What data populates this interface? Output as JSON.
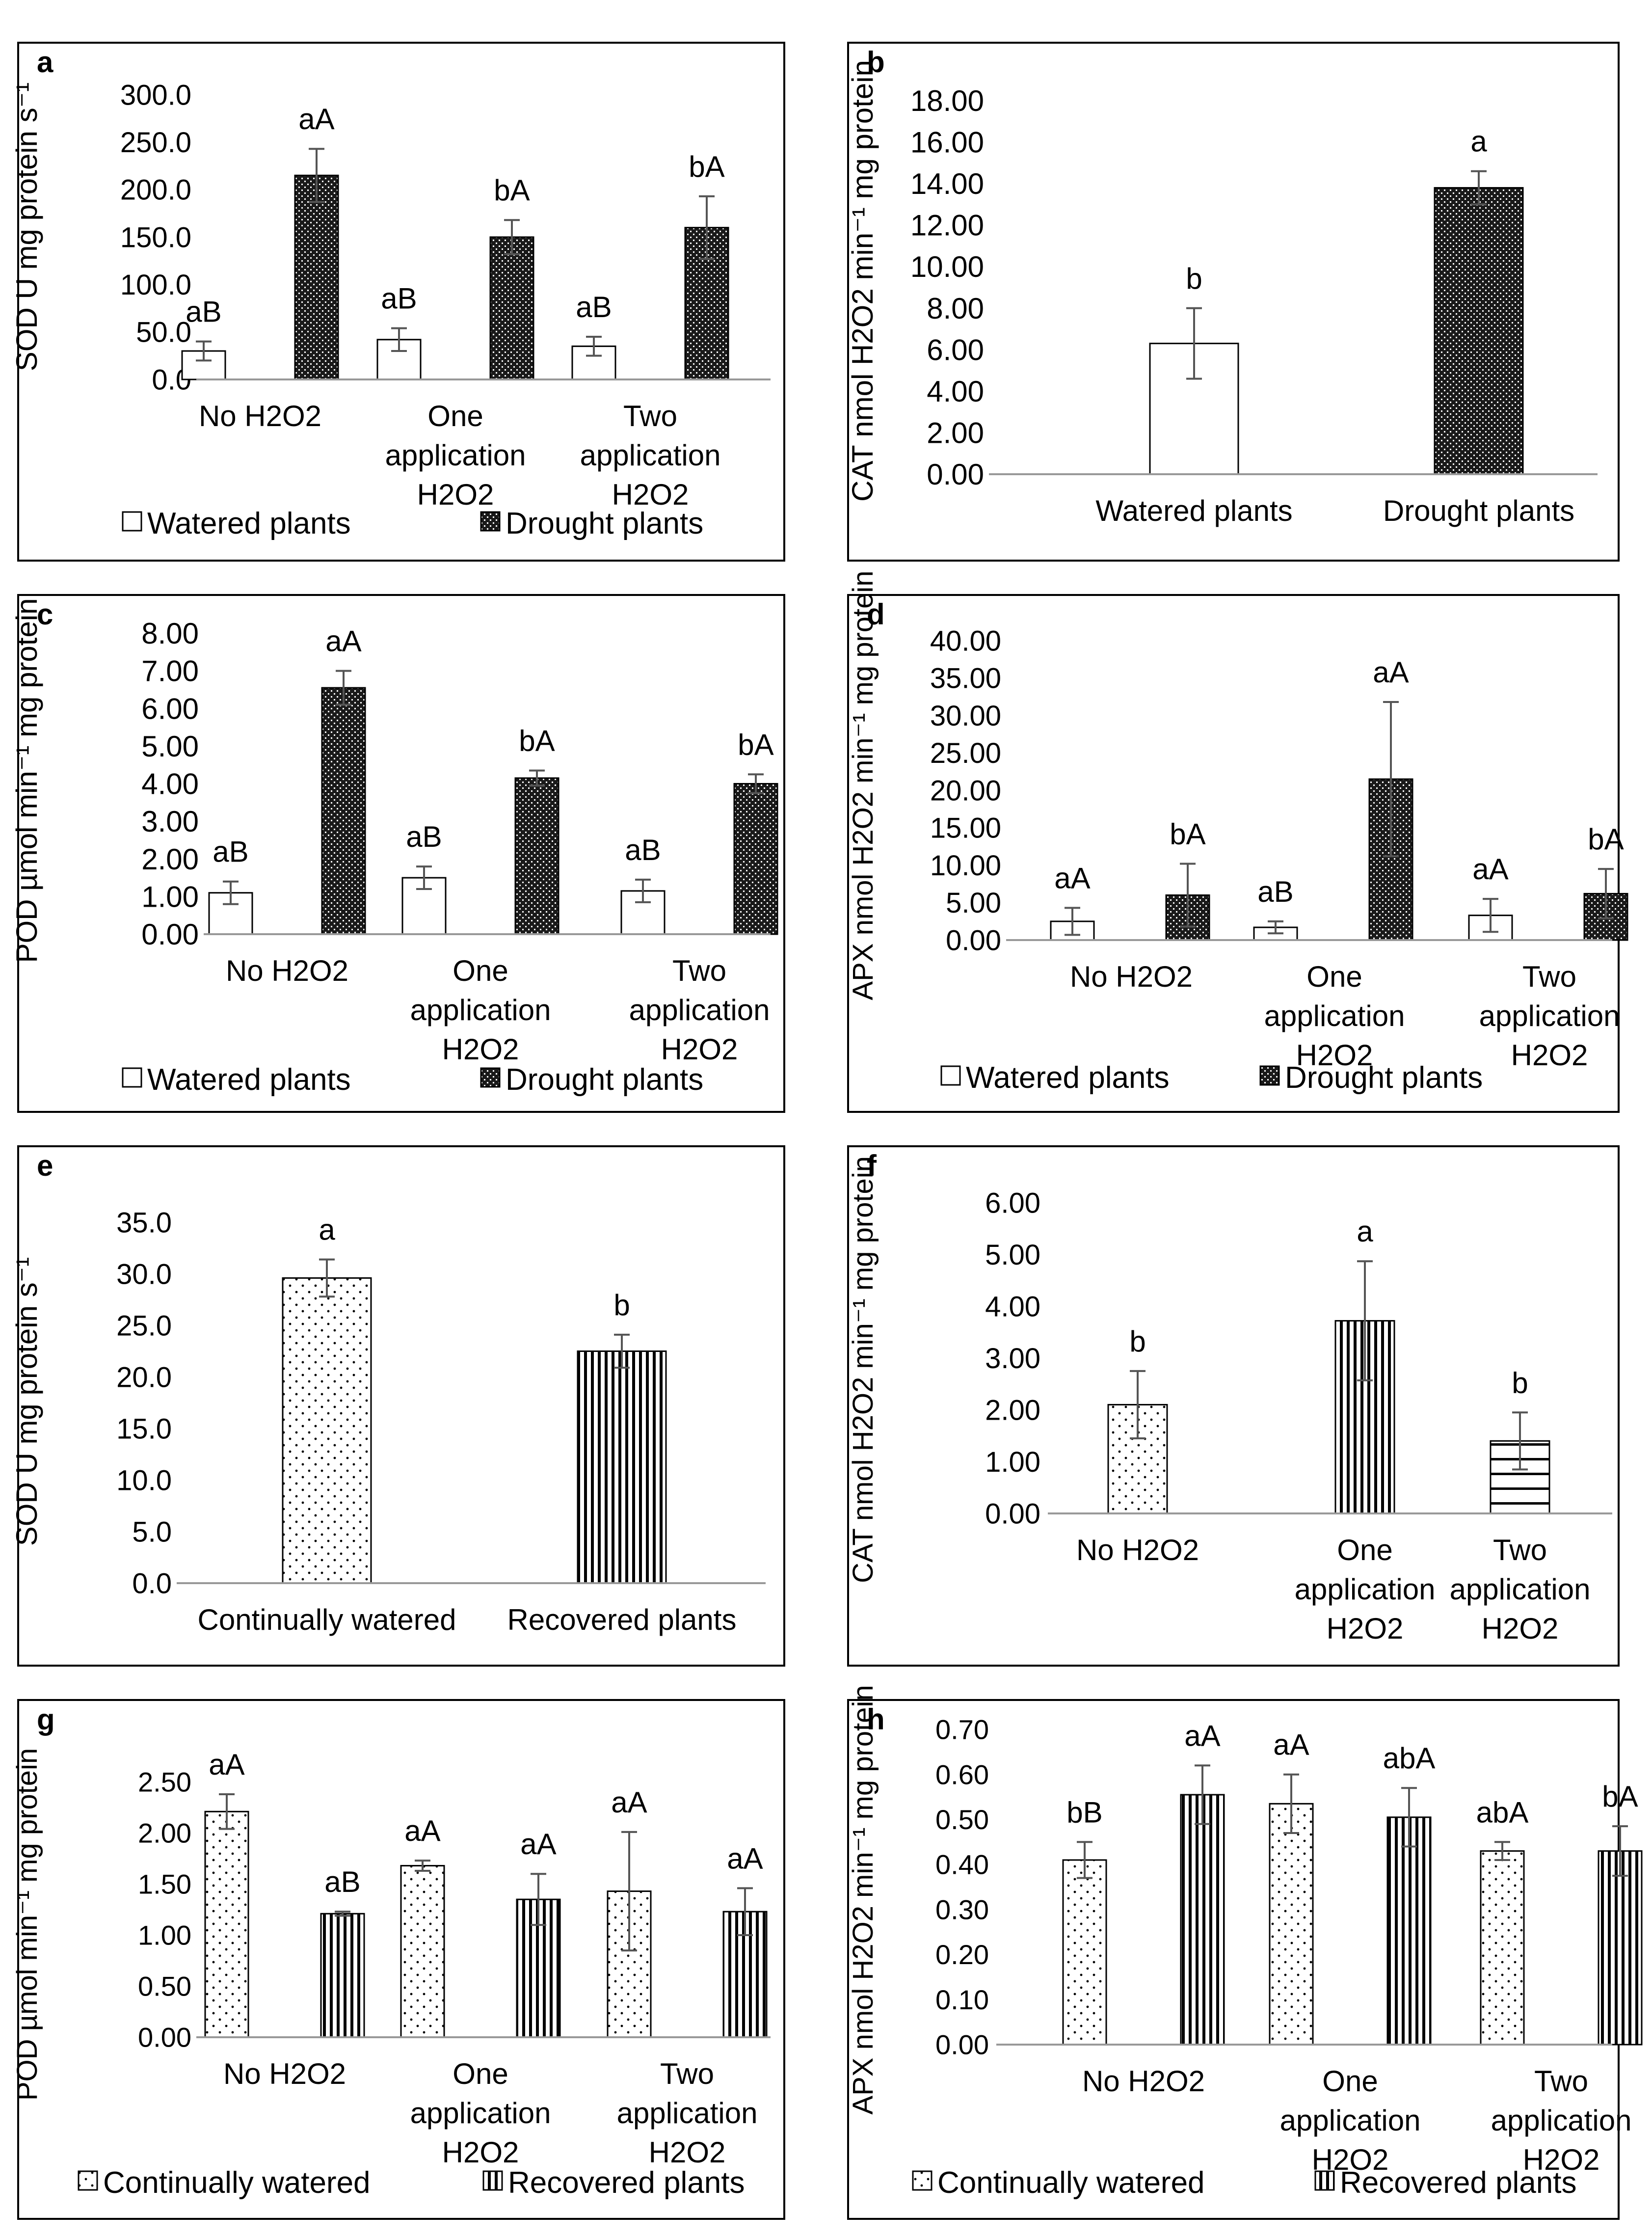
{
  "figure": {
    "legend_watered": "Watered plants",
    "legend_drought": "Drought plants",
    "legend_continual": "Continually watered",
    "legend_recovered": "Recovered plants"
  },
  "chart_data": [
    {
      "panel": "a",
      "type": "bar",
      "ylabel": "SOD U mg protein s^-1",
      "yticks": [
        "0.0",
        "50.0",
        "100.0",
        "150.0",
        "200.0",
        "250.0",
        "300.0"
      ],
      "ylim": [
        0,
        300
      ],
      "categories": [
        [
          "No H2O2"
        ],
        [
          "One",
          "application",
          "H2O2"
        ],
        [
          "Two",
          "application",
          "H2O2"
        ]
      ],
      "series": [
        {
          "name": "Watered plants",
          "pattern": "white",
          "values": [
            30,
            42,
            35
          ],
          "errors": [
            10,
            12,
            10
          ],
          "labels": [
            "aB",
            "aB",
            "aB"
          ]
        },
        {
          "name": "Drought plants",
          "pattern": "dense",
          "values": [
            215,
            150,
            160
          ],
          "errors": [
            28,
            18,
            33
          ],
          "labels": [
            "aA",
            "bA",
            "bA"
          ]
        }
      ],
      "legend": [
        "Watered plants",
        "Drought plants"
      ]
    },
    {
      "panel": "b",
      "type": "bar",
      "ylabel": "CAT nmol H2O2 min^-1 mg protein",
      "yticks": [
        "0.00",
        "2.00",
        "4.00",
        "6.00",
        "8.00",
        "10.00",
        "12.00",
        "14.00",
        "16.00",
        "18.00"
      ],
      "ylim": [
        0,
        18
      ],
      "categories": [
        [
          "Watered plants"
        ],
        [
          "Drought plants"
        ]
      ],
      "series": [
        {
          "name": "Watered plants",
          "pattern": [
            "white",
            "dense"
          ],
          "values": [
            6.3,
            13.8
          ],
          "errors": [
            1.7,
            0.8
          ],
          "labels": [
            "b",
            "a"
          ]
        }
      ],
      "legend": []
    },
    {
      "panel": "c",
      "type": "bar",
      "ylabel": "POD µmol min^-1 mg protein",
      "yticks": [
        "0.00",
        "1.00",
        "2.00",
        "3.00",
        "4.00",
        "5.00",
        "6.00",
        "7.00",
        "8.00"
      ],
      "ylim": [
        0,
        8
      ],
      "categories": [
        [
          "No H2O2"
        ],
        [
          "One",
          "application",
          "H2O2"
        ],
        [
          "Two",
          "application",
          "H2O2"
        ]
      ],
      "series": [
        {
          "name": "Watered plants",
          "pattern": "white",
          "values": [
            1.1,
            1.5,
            1.15
          ],
          "errors": [
            0.3,
            0.3,
            0.3
          ],
          "labels": [
            "aB",
            "aB",
            "aB"
          ]
        },
        {
          "name": "Drought plants",
          "pattern": "dense",
          "values": [
            6.55,
            4.15,
            4.0
          ],
          "errors": [
            0.45,
            0.2,
            0.25
          ],
          "labels": [
            "aA",
            "bA",
            "bA"
          ]
        }
      ],
      "legend": [
        "Watered plants",
        "Drought plants"
      ]
    },
    {
      "panel": "d",
      "type": "bar",
      "ylabel": "APX nmol H2O2 min^-1 mg protein",
      "yticks": [
        "0.00",
        "5.00",
        "10.00",
        "15.00",
        "20.00",
        "25.00",
        "30.00",
        "35.00",
        "40.00"
      ],
      "ylim": [
        0,
        40
      ],
      "categories": [
        [
          "No H2O2"
        ],
        [
          "One",
          "application",
          "H2O2"
        ],
        [
          "Two",
          "application",
          "H2O2"
        ]
      ],
      "series": [
        {
          "name": "Watered plants",
          "pattern": "white",
          "values": [
            2.5,
            1.7,
            3.3
          ],
          "errors": [
            1.8,
            0.8,
            2.2
          ],
          "labels": [
            "aA",
            "aB",
            "aA"
          ]
        },
        {
          "name": "Drought plants",
          "pattern": "dense",
          "values": [
            6.0,
            21.5,
            6.2
          ],
          "errors": [
            4.2,
            10.3,
            3.3
          ],
          "labels": [
            "bA",
            "aA",
            "bA"
          ]
        }
      ],
      "legend": [
        "Watered plants",
        "Drought plants"
      ]
    },
    {
      "panel": "e",
      "type": "bar",
      "ylabel": "SOD U mg protein s^-1",
      "yticks": [
        "0.0",
        "5.0",
        "10.0",
        "15.0",
        "20.0",
        "25.0",
        "30.0",
        "35.0"
      ],
      "ylim": [
        0,
        35
      ],
      "categories": [
        [
          "Continually watered"
        ],
        [
          "Recovered plants"
        ]
      ],
      "series": [
        {
          "name": "Continually watered",
          "pattern": [
            "dots",
            "vlines"
          ],
          "values": [
            29.6,
            22.5
          ],
          "errors": [
            1.8,
            1.6
          ],
          "labels": [
            "a",
            "b"
          ]
        }
      ],
      "legend": []
    },
    {
      "panel": "f",
      "type": "bar",
      "ylabel": "CAT nmol H2O2 min^-1 mg protein",
      "yticks": [
        "0.00",
        "1.00",
        "2.00",
        "3.00",
        "4.00",
        "5.00",
        "6.00"
      ],
      "ylim": [
        0,
        6
      ],
      "categories": [
        [
          "No H2O2"
        ],
        [
          "One",
          "application",
          "H2O2"
        ],
        [
          "Two",
          "application",
          "H2O2"
        ]
      ],
      "series": [
        {
          "name": "Continually watered",
          "pattern": [
            "dots",
            "vlines",
            "hlines"
          ],
          "values": [
            2.1,
            3.72,
            1.4
          ],
          "errors": [
            0.65,
            1.15,
            0.55
          ],
          "labels": [
            "b",
            "a",
            "b"
          ]
        }
      ],
      "legend": []
    },
    {
      "panel": "g",
      "type": "bar",
      "ylabel": "POD µmol min^-1 mg protein",
      "yticks": [
        "0.00",
        "0.50",
        "1.00",
        "1.50",
        "2.00",
        "2.50"
      ],
      "ylim": [
        0,
        2.5
      ],
      "categories": [
        [
          "No H2O2"
        ],
        [
          "One",
          "application",
          "H2O2"
        ],
        [
          "Two",
          "application",
          "H2O2"
        ]
      ],
      "series": [
        {
          "name": "Continually watered",
          "pattern": "dots",
          "values": [
            2.21,
            1.68,
            1.43
          ],
          "errors": [
            0.17,
            0.05,
            0.58
          ],
          "labels": [
            "aA",
            "aA",
            "aA"
          ]
        },
        {
          "name": "Recovered plants",
          "pattern": "vlines",
          "values": [
            1.21,
            1.35,
            1.23
          ],
          "errors": [
            0.02,
            0.25,
            0.23
          ],
          "labels": [
            "aB",
            "aA",
            "aA"
          ]
        }
      ],
      "legend": [
        "Continually watered",
        "Recovered plants"
      ]
    },
    {
      "panel": "h",
      "type": "bar",
      "ylabel": "APX nmol H2O2 min^-1 mg protein",
      "yticks": [
        "0.00",
        "0.10",
        "0.20",
        "0.30",
        "0.40",
        "0.50",
        "0.60",
        "0.70"
      ],
      "ylim": [
        0,
        0.7
      ],
      "categories": [
        [
          "No H2O2"
        ],
        [
          "One",
          "application",
          "H2O2"
        ],
        [
          "Two",
          "application",
          "H2O2"
        ]
      ],
      "series": [
        {
          "name": "Continually watered",
          "pattern": "dots",
          "values": [
            0.41,
            0.535,
            0.43
          ],
          "errors": [
            0.04,
            0.065,
            0.02
          ],
          "labels": [
            "bB",
            "aA",
            "abA"
          ]
        },
        {
          "name": "Recovered plants",
          "pattern": "vlines",
          "values": [
            0.555,
            0.505,
            0.43
          ],
          "errors": [
            0.065,
            0.065,
            0.055
          ],
          "labels": [
            "aA",
            "abA",
            "bA"
          ]
        }
      ],
      "legend": [
        "Continually watered",
        "Recovered plants"
      ]
    }
  ]
}
